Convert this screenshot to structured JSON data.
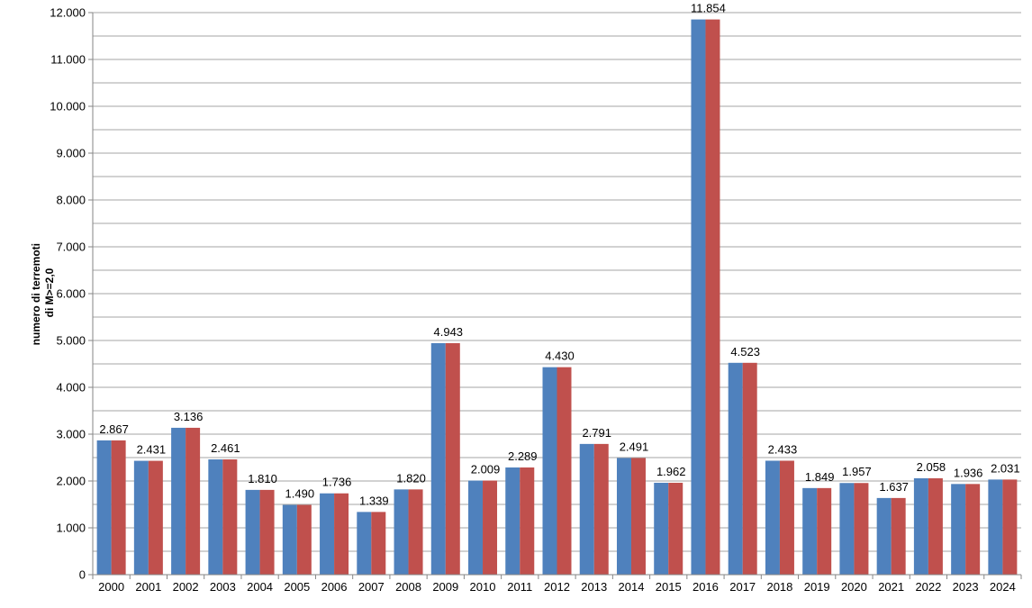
{
  "chart_data": {
    "type": "bar",
    "title": "",
    "xlabel": "",
    "ylabel_lines": [
      "numero di terremoti",
      "di M>=2,0"
    ],
    "ylim": [
      0,
      12000
    ],
    "ystep": 1000,
    "minor_step": 500,
    "grid": true,
    "legend": "none",
    "categories": [
      "2000",
      "2001",
      "2002",
      "2003",
      "2004",
      "2005",
      "2006",
      "2007",
      "2008",
      "2009",
      "2010",
      "2011",
      "2012",
      "2013",
      "2014",
      "2015",
      "2016",
      "2017",
      "2018",
      "2019",
      "2020",
      "2021",
      "2022",
      "2023",
      "2024"
    ],
    "values": [
      2867,
      2431,
      3136,
      2461,
      1810,
      1490,
      1736,
      1339,
      1820,
      4943,
      2009,
      2289,
      4430,
      2791,
      2491,
      1962,
      11854,
      4523,
      2433,
      1849,
      1957,
      1637,
      2058,
      1936,
      2031
    ],
    "data_labels": [
      "2.867",
      "2.431",
      "3.136",
      "2.461",
      "1.810",
      "1.490",
      "1.736",
      "1.339",
      "1.820",
      "4.943",
      "2.009",
      "2.289",
      "4.430",
      "2.791",
      "2.491",
      "1.962",
      "11.854",
      "4.523",
      "2.433",
      "1.849",
      "1.957",
      "1.637",
      "2.058",
      "1.936",
      "2.031"
    ],
    "ytick_labels": [
      "0",
      "1.000",
      "2.000",
      "3.000",
      "4.000",
      "5.000",
      "6.000",
      "7.000",
      "8.000",
      "9.000",
      "10.000",
      "11.000",
      "12.000"
    ],
    "colors": {
      "bar_left": "#4f81bd",
      "bar_right": "#c0504d",
      "grid": "#a6a6a6",
      "axis": "#868686"
    }
  }
}
